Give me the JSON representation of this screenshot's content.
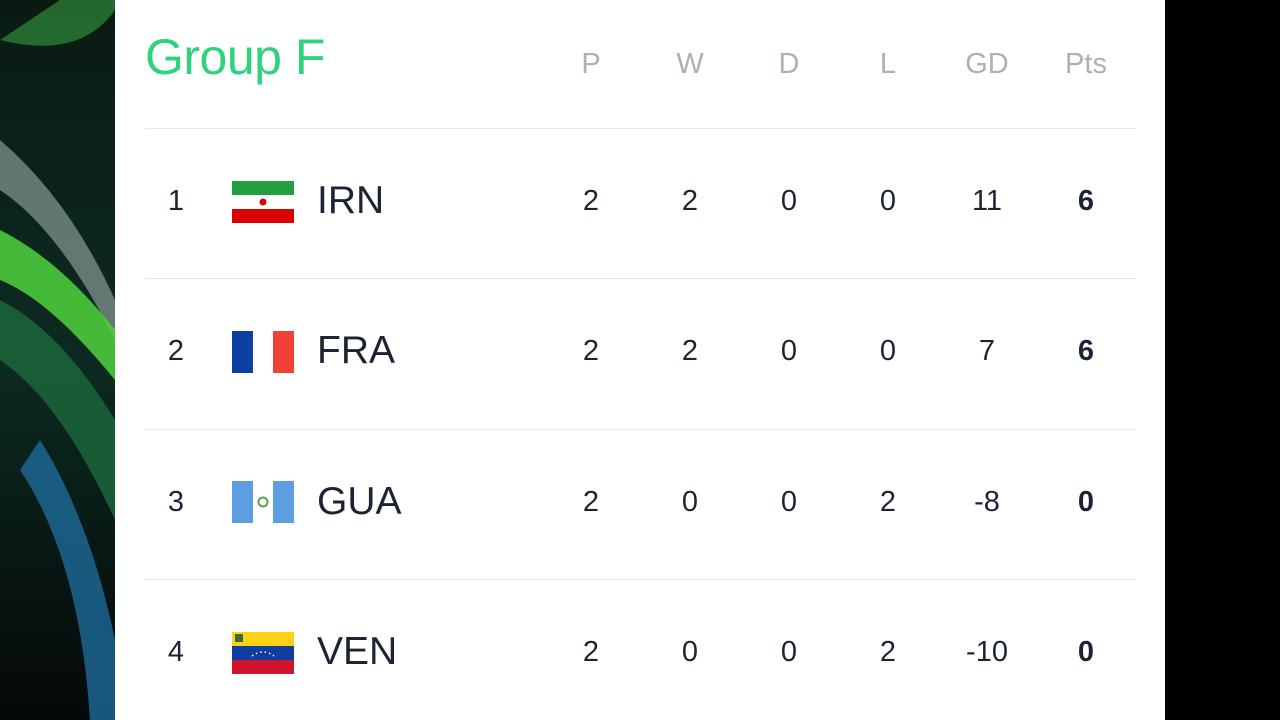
{
  "header": {
    "title": "Group F"
  },
  "table": {
    "columns": [
      "P",
      "W",
      "D",
      "L",
      "GD",
      "Pts"
    ],
    "rows": [
      [
        1,
        "IRN",
        2,
        2,
        0,
        0,
        11,
        6
      ],
      [
        2,
        "FRA",
        2,
        2,
        0,
        0,
        7,
        6
      ],
      [
        3,
        "GUA",
        2,
        0,
        0,
        2,
        -8,
        0
      ],
      [
        4,
        "VEN",
        2,
        0,
        0,
        2,
        -10,
        0
      ]
    ]
  }
}
